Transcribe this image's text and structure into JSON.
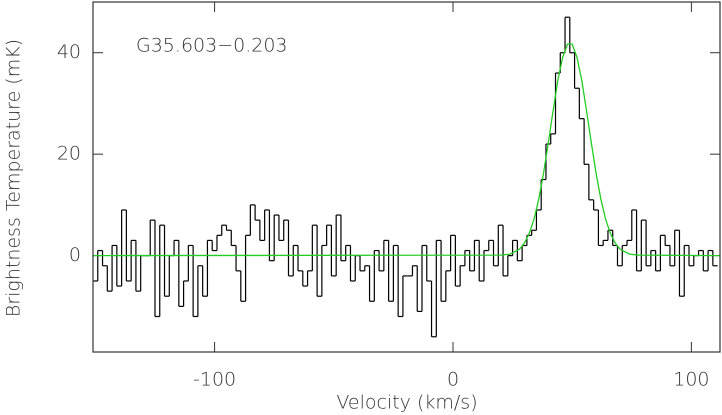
{
  "chart_data": {
    "type": "step",
    "annotation": "G35.603−0.203",
    "xlabel": "Velocity (km/s)",
    "ylabel": "Brightness Temperature (mK)",
    "xlim": [
      -151,
      112
    ],
    "ylim": [
      -19,
      50
    ],
    "xticks": [
      -100,
      0,
      100
    ],
    "yticks": [
      0,
      20,
      40
    ],
    "series": [
      {
        "name": "spectrum",
        "color": "#000000",
        "x": [
          -150,
          -148,
          -146,
          -144,
          -142,
          -140,
          -138,
          -136,
          -134,
          -132,
          -130,
          -128,
          -126,
          -124,
          -122,
          -120,
          -118,
          -116,
          -114,
          -112,
          -110,
          -108,
          -106,
          -104,
          -102,
          -100,
          -98,
          -96,
          -94,
          -92,
          -90,
          -88,
          -86,
          -84,
          -82,
          -80,
          -78,
          -76,
          -74,
          -72,
          -70,
          -68,
          -66,
          -64,
          -62,
          -60,
          -58,
          -56,
          -54,
          -52,
          -50,
          -48,
          -46,
          -44,
          -42,
          -40,
          -38,
          -36,
          -34,
          -32,
          -30,
          -28,
          -26,
          -24,
          -22,
          -20,
          -18,
          -16,
          -14,
          -12,
          -10,
          -8,
          -6,
          -4,
          -2,
          0,
          2,
          4,
          6,
          8,
          10,
          12,
          14,
          16,
          18,
          20,
          22,
          24,
          26,
          28,
          30,
          32,
          34,
          36,
          38,
          40,
          42,
          44,
          46,
          48,
          50,
          52,
          54,
          56,
          58,
          60,
          62,
          64,
          66,
          68,
          70,
          72,
          74,
          76,
          78,
          80,
          82,
          84,
          86,
          88,
          90,
          92,
          94,
          96,
          98,
          100,
          102,
          104,
          106,
          108,
          110
        ],
        "values": [
          -5,
          1,
          -2,
          -7,
          2,
          -6,
          9,
          -5,
          3,
          -7,
          0,
          0,
          7,
          -12,
          6,
          -8,
          0,
          3,
          -10,
          -5,
          2,
          -12,
          -2,
          -8,
          3,
          1,
          4,
          6,
          5,
          2,
          -3,
          -9,
          4,
          10,
          7,
          3,
          9,
          -1,
          8,
          3,
          7,
          -4,
          2,
          -3,
          -6,
          -3,
          6,
          -8,
          2,
          6,
          -4,
          8,
          -1,
          2,
          -5,
          0,
          -3,
          -2,
          -9,
          1,
          -3,
          3,
          -9,
          2,
          -12,
          -4,
          -4,
          -2,
          -11,
          2,
          -5,
          -16,
          3,
          -9,
          -3,
          4,
          -6,
          -2,
          1,
          -3,
          3,
          -5,
          1,
          3,
          -2,
          6,
          -4,
          0,
          3,
          -1,
          2,
          4,
          5,
          9,
          15,
          22,
          24,
          36,
          40,
          47,
          40,
          33,
          27,
          18,
          11,
          9,
          2,
          3,
          5,
          2,
          -2,
          2,
          3,
          9,
          -3,
          7,
          -2,
          1,
          -3,
          4,
          2,
          -2,
          5,
          -8,
          2,
          -2,
          0,
          1,
          -3,
          1,
          -2
        ]
      },
      {
        "name": "fit",
        "color": "#22cc22",
        "x": [
          -151,
          20,
          24,
          28,
          30,
          32,
          34,
          36,
          38,
          40,
          42,
          44,
          46,
          48,
          50,
          52,
          54,
          56,
          58,
          60,
          62,
          64,
          66,
          68,
          70,
          74,
          78,
          112
        ],
        "values": [
          0,
          0.1,
          0.3,
          1.3,
          2.5,
          4.4,
          7.2,
          11.2,
          16.3,
          22.3,
          28.6,
          34.6,
          39.1,
          41.7,
          41.7,
          39.1,
          34.6,
          28.6,
          22.3,
          16.3,
          11.2,
          7.2,
          4.4,
          2.5,
          1.3,
          0.3,
          0.1,
          0
        ]
      }
    ]
  }
}
